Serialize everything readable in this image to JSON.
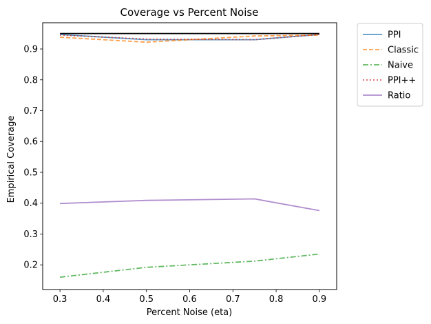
{
  "chart_data": {
    "type": "line",
    "title": "Coverage vs Percent Noise",
    "xlabel": "Percent Noise (eta)",
    "ylabel": "Empirical Coverage",
    "xlim": [
      0.26,
      0.94
    ],
    "ylim": [
      0.12,
      0.985
    ],
    "xticks": [
      "0.3",
      "0.4",
      "0.5",
      "0.6",
      "0.7",
      "0.8",
      "0.9"
    ],
    "yticks": [
      "0.2",
      "0.3",
      "0.4",
      "0.5",
      "0.6",
      "0.7",
      "0.8",
      "0.9"
    ],
    "x": [
      0.3,
      0.5,
      0.75,
      0.9
    ],
    "reference_line": {
      "y": 0.95,
      "color": "#000000"
    },
    "legend_position": "outside-top-right",
    "grid": false,
    "series": [
      {
        "name": "PPI",
        "values": [
          0.947,
          0.93,
          0.93,
          0.947
        ],
        "color": "#1f77b4",
        "dash": "solid",
        "opacity": 0.75
      },
      {
        "name": "Classic",
        "values": [
          0.938,
          0.922,
          0.942,
          0.945
        ],
        "color": "#ff7f0e",
        "dash": "dashed",
        "opacity": 0.75
      },
      {
        "name": "Naive",
        "values": [
          0.16,
          0.192,
          0.212,
          0.235
        ],
        "color": "#2ca02c",
        "dash": "dashdot",
        "opacity": 0.75
      },
      {
        "name": "PPI++",
        "values": [
          0.945,
          0.932,
          0.93,
          0.947
        ],
        "color": "#d62728",
        "dash": "dotted",
        "opacity": 0.75
      },
      {
        "name": "Ratio",
        "values": [
          0.399,
          0.409,
          0.414,
          0.376
        ],
        "color": "#9467bd",
        "dash": "solid",
        "opacity": 0.75
      }
    ]
  }
}
